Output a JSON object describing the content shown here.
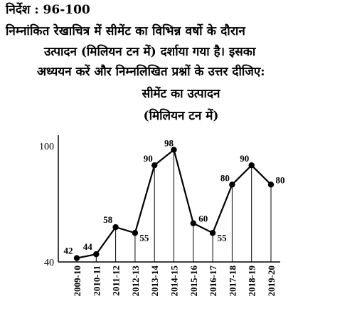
{
  "header": {
    "directive": "निर्देश : 96-100",
    "instruction_line1": "निम्नांकित रेखाचित्र में सीमेंट का विभिन्न वर्षो के दौरान",
    "instruction_line2": "उत्पादन (मिलियन टन में) दर्शाया गया है। इसका",
    "instruction_line3": "अध्ययन करें और निम्नलिखित प्रश्नों के उत्तर दीजिए:"
  },
  "chart_data": {
    "type": "line",
    "title": "सीमेंट का उत्पादन",
    "subtitle": "(मिलियन टन में)",
    "categories": [
      "2009-10",
      "2010-11",
      "2011-12",
      "2012-13",
      "2013-14",
      "2014-15",
      "2015-16",
      "2016-17",
      "2017-18",
      "2018-19",
      "2019-20"
    ],
    "values": [
      42,
      44,
      58,
      55,
      90,
      98,
      60,
      55,
      80,
      90,
      80
    ],
    "ylim": [
      40,
      100
    ],
    "yticks": [
      40,
      100
    ],
    "xlabel": "",
    "ylabel": "",
    "grid": "vertical"
  }
}
